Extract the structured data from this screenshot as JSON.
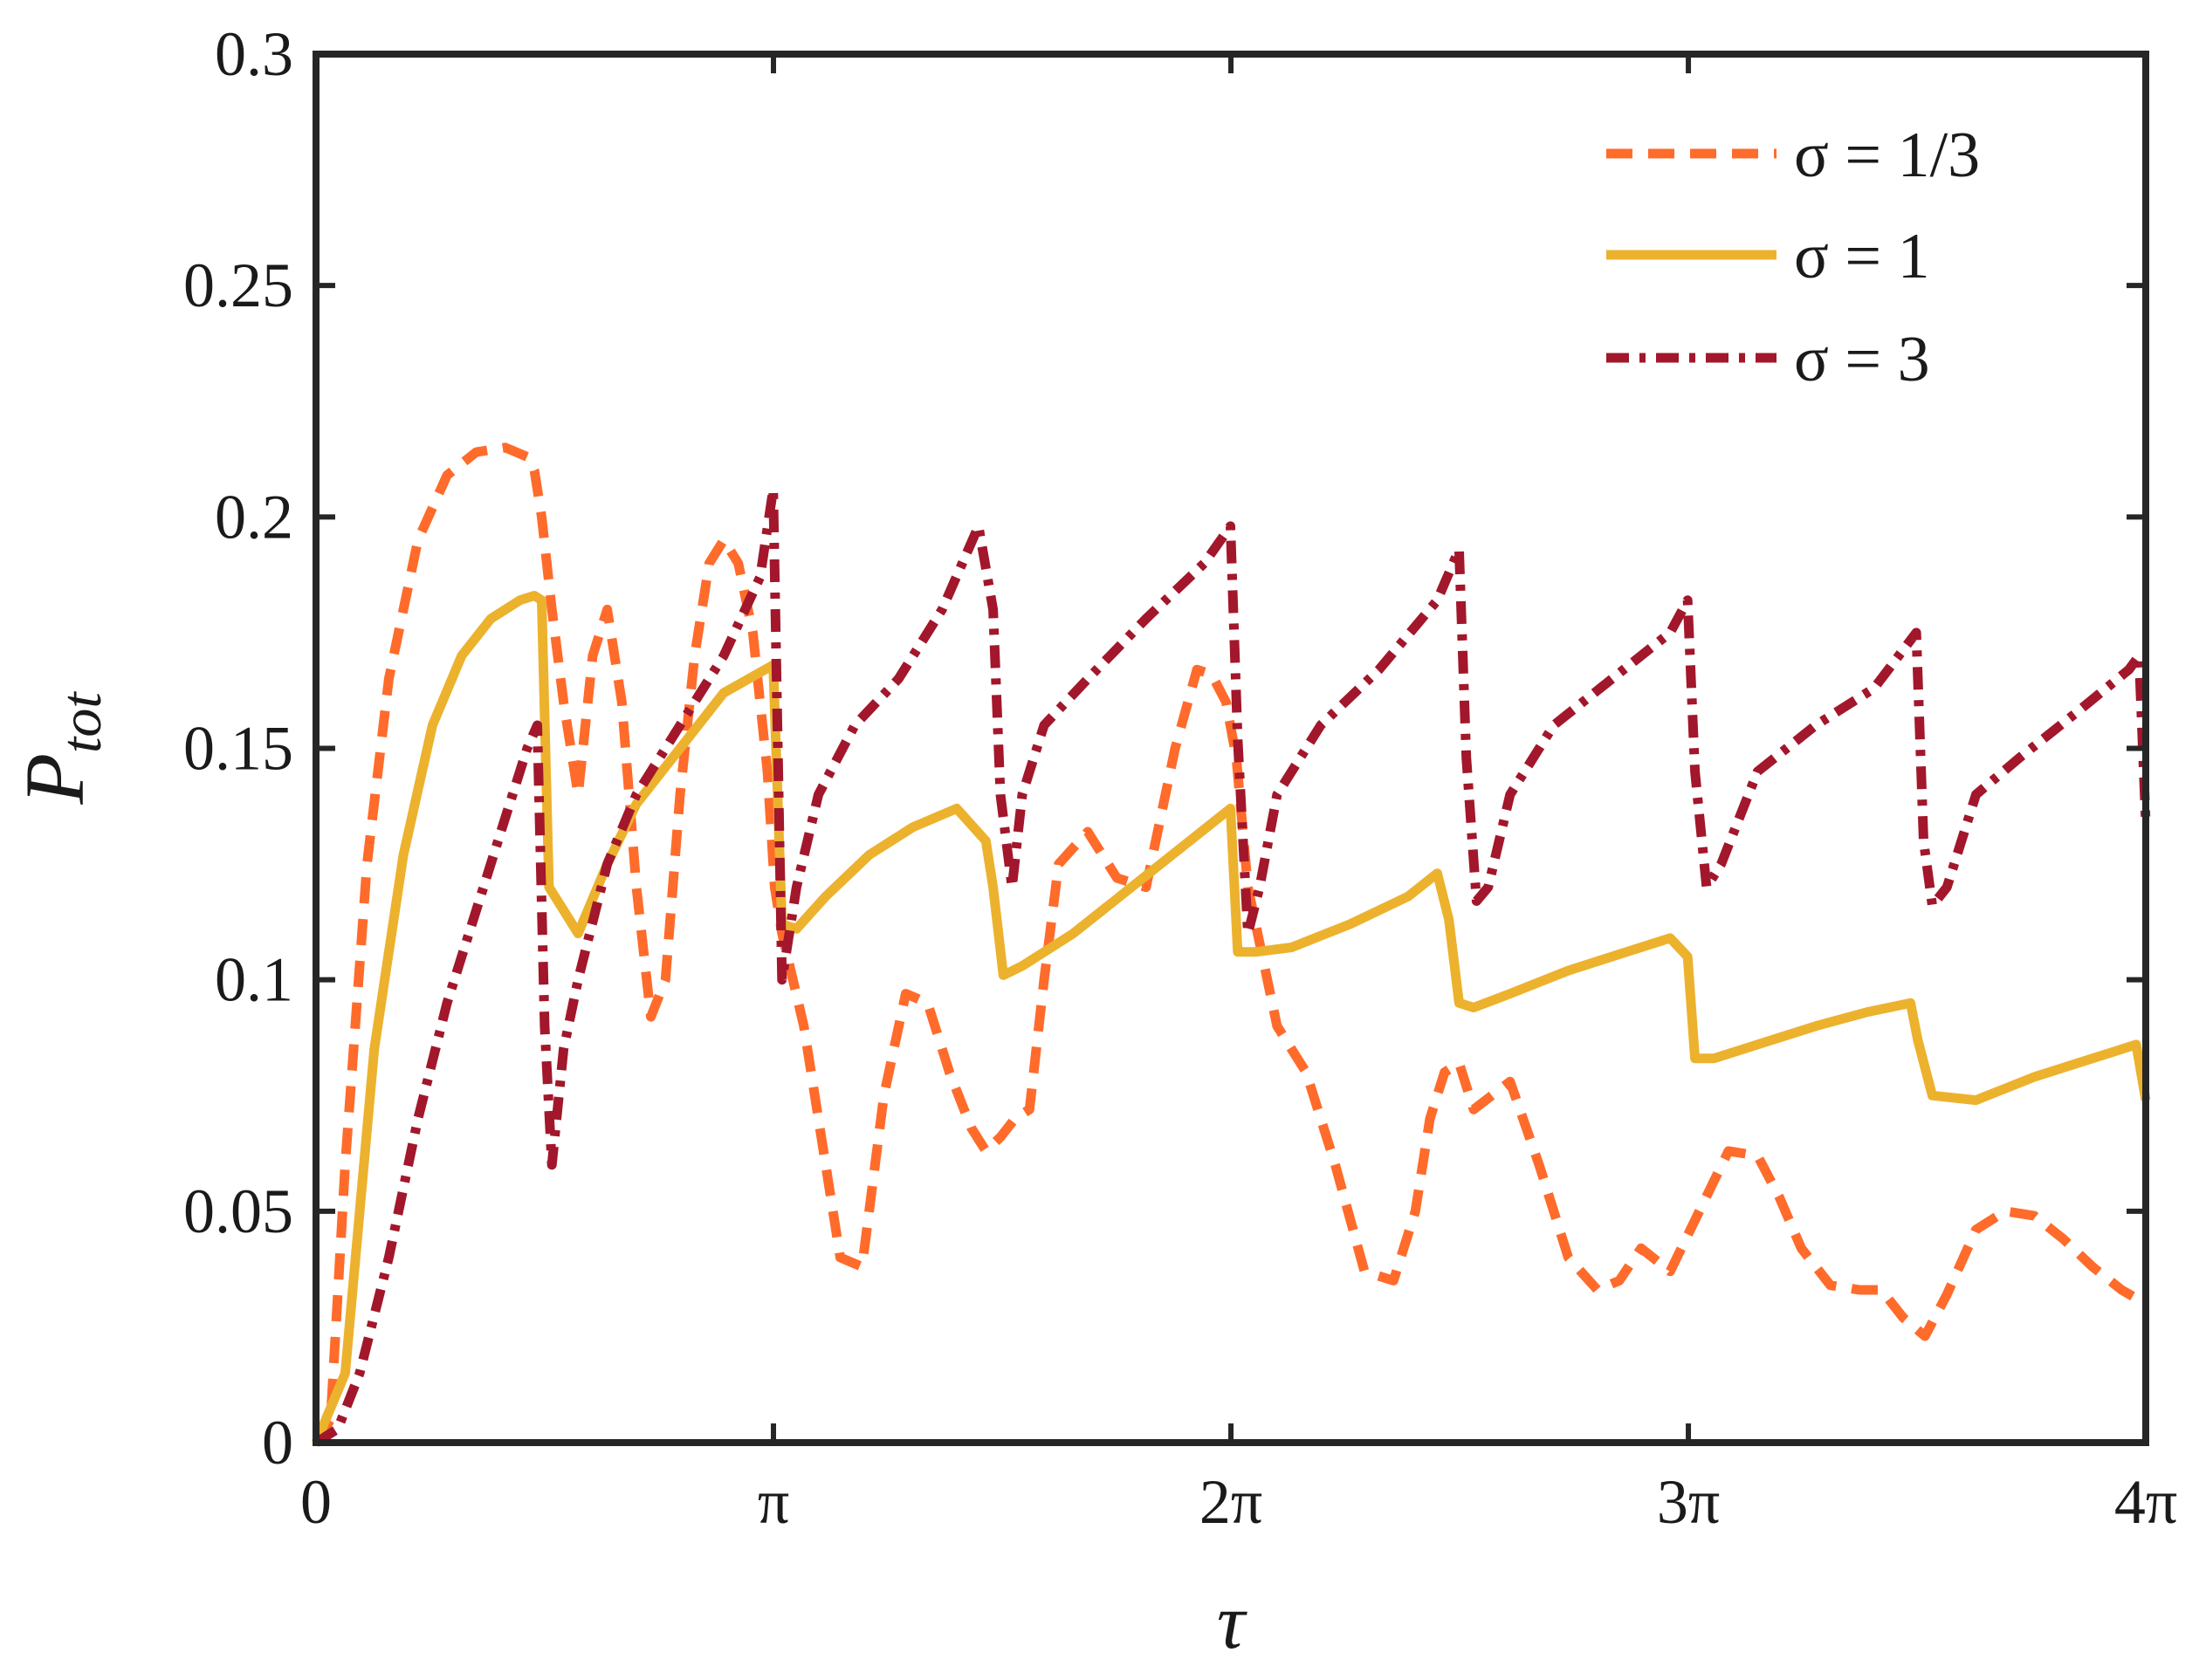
{
  "chart_data": {
    "type": "line",
    "title": "",
    "xlabel": "τ",
    "ylabel": "P",
    "ylabel_subscript": "tot",
    "xlim": [
      0,
      12.566
    ],
    "ylim": [
      0,
      0.3
    ],
    "x_ticks": [
      {
        "value": 0,
        "label": "0"
      },
      {
        "value": 3.1416,
        "label": "π"
      },
      {
        "value": 6.2832,
        "label": "2π"
      },
      {
        "value": 9.4248,
        "label": "3π"
      },
      {
        "value": 12.566,
        "label": "4π"
      }
    ],
    "y_ticks": [
      {
        "value": 0,
        "label": "0"
      },
      {
        "value": 0.05,
        "label": "0.05"
      },
      {
        "value": 0.1,
        "label": "0.1"
      },
      {
        "value": 0.15,
        "label": "0.15"
      },
      {
        "value": 0.2,
        "label": "0.2"
      },
      {
        "value": 0.25,
        "label": "0.25"
      },
      {
        "value": 0.3,
        "label": "0.3"
      }
    ],
    "grid": false,
    "legend_position": "top-right",
    "series": [
      {
        "name": "σ = 1/3",
        "color": "#ff6b2b",
        "style": "dashed",
        "x": [
          0,
          0.1,
          0.2,
          0.35,
          0.5,
          0.7,
          0.9,
          1.1,
          1.3,
          1.45,
          1.5,
          1.55,
          1.62,
          1.7,
          1.8,
          1.9,
          2.0,
          2.1,
          2.2,
          2.3,
          2.4,
          2.5,
          2.6,
          2.7,
          2.8,
          2.9,
          3.0,
          3.05,
          3.1,
          3.15,
          3.2,
          3.35,
          3.5,
          3.6,
          3.75,
          3.9,
          4.05,
          4.2,
          4.35,
          4.5,
          4.6,
          4.7,
          4.8,
          4.9,
          5.0,
          5.1,
          5.3,
          5.5,
          5.7,
          5.9,
          6.05,
          6.15,
          6.25,
          6.32,
          6.4,
          6.5,
          6.6,
          6.8,
          7.0,
          7.2,
          7.4,
          7.55,
          7.65,
          7.75,
          7.85,
          7.95,
          8.2,
          8.4,
          8.6,
          8.8,
          8.95,
          9.1,
          9.3,
          9.5,
          9.7,
          9.9,
          10.05,
          10.2,
          10.4,
          10.6,
          10.75,
          10.9,
          11.05,
          11.2,
          11.4,
          11.6,
          11.8,
          12.0,
          12.2,
          12.4,
          12.566
        ],
        "values": [
          0,
          0.005,
          0.06,
          0.125,
          0.165,
          0.195,
          0.209,
          0.214,
          0.215,
          0.213,
          0.21,
          0.2,
          0.18,
          0.16,
          0.14,
          0.17,
          0.18,
          0.16,
          0.12,
          0.092,
          0.1,
          0.14,
          0.17,
          0.19,
          0.195,
          0.19,
          0.175,
          0.16,
          0.145,
          0.12,
          0.11,
          0.09,
          0.06,
          0.04,
          0.038,
          0.075,
          0.097,
          0.095,
          0.08,
          0.068,
          0.063,
          0.066,
          0.07,
          0.072,
          0.1,
          0.125,
          0.132,
          0.122,
          0.12,
          0.15,
          0.167,
          0.166,
          0.16,
          0.148,
          0.12,
          0.105,
          0.09,
          0.08,
          0.06,
          0.037,
          0.035,
          0.05,
          0.07,
          0.08,
          0.082,
          0.072,
          0.078,
          0.06,
          0.04,
          0.033,
          0.035,
          0.042,
          0.037,
          0.05,
          0.063,
          0.062,
          0.053,
          0.042,
          0.034,
          0.033,
          0.033,
          0.027,
          0.023,
          0.032,
          0.046,
          0.05,
          0.049,
          0.044,
          0.038,
          0.033,
          0.03
        ]
      },
      {
        "name": "σ = 1",
        "color": "#ecb22e",
        "style": "solid",
        "x": [
          0,
          0.2,
          0.4,
          0.6,
          0.8,
          1.0,
          1.2,
          1.4,
          1.5,
          1.55,
          1.6,
          1.7,
          1.8,
          2.0,
          2.2,
          2.5,
          2.8,
          3.14,
          3.2,
          3.3,
          3.5,
          3.8,
          4.1,
          4.4,
          4.6,
          4.65,
          4.72,
          4.85,
          5.2,
          5.6,
          6.0,
          6.28,
          6.33,
          6.45,
          6.7,
          7.1,
          7.5,
          7.7,
          7.78,
          7.85,
          7.95,
          8.2,
          8.6,
          9.0,
          9.3,
          9.42,
          9.47,
          9.6,
          9.9,
          10.3,
          10.65,
          10.95,
          11.0,
          11.1,
          11.4,
          11.8,
          12.2,
          12.5,
          12.566
        ],
        "values": [
          0,
          0.015,
          0.085,
          0.127,
          0.155,
          0.17,
          0.178,
          0.182,
          0.183,
          0.182,
          0.12,
          0.115,
          0.11,
          0.125,
          0.138,
          0.15,
          0.162,
          0.168,
          0.112,
          0.111,
          0.118,
          0.127,
          0.133,
          0.137,
          0.13,
          0.12,
          0.101,
          0.103,
          0.11,
          0.12,
          0.13,
          0.137,
          0.106,
          0.106,
          0.107,
          0.112,
          0.118,
          0.123,
          0.113,
          0.095,
          0.094,
          0.097,
          0.102,
          0.106,
          0.109,
          0.105,
          0.083,
          0.083,
          0.086,
          0.09,
          0.093,
          0.095,
          0.087,
          0.075,
          0.074,
          0.079,
          0.083,
          0.086,
          0.074
        ]
      },
      {
        "name": "σ = 3",
        "color": "#a2172b",
        "style": "dashdot",
        "x": [
          0,
          0.15,
          0.3,
          0.5,
          0.7,
          0.9,
          1.1,
          1.3,
          1.45,
          1.52,
          1.57,
          1.62,
          1.7,
          1.8,
          2.0,
          2.2,
          2.5,
          2.8,
          3.05,
          3.14,
          3.2,
          3.3,
          3.45,
          3.7,
          4.0,
          4.3,
          4.55,
          4.65,
          4.7,
          4.78,
          4.85,
          5.0,
          5.3,
          5.7,
          6.1,
          6.28,
          6.33,
          6.4,
          6.48,
          6.6,
          6.9,
          7.3,
          7.7,
          7.85,
          7.9,
          7.97,
          8.05,
          8.2,
          8.5,
          8.9,
          9.3,
          9.42,
          9.47,
          9.55,
          9.65,
          9.9,
          10.3,
          10.7,
          10.99,
          11.04,
          11.1,
          11.2,
          11.4,
          11.7,
          12.1,
          12.45,
          12.52,
          12.566
        ],
        "values": [
          0,
          0.003,
          0.015,
          0.04,
          0.07,
          0.095,
          0.115,
          0.135,
          0.15,
          0.155,
          0.09,
          0.06,
          0.085,
          0.1,
          0.125,
          0.14,
          0.155,
          0.17,
          0.187,
          0.206,
          0.1,
          0.12,
          0.14,
          0.155,
          0.165,
          0.18,
          0.198,
          0.18,
          0.14,
          0.12,
          0.14,
          0.155,
          0.165,
          0.178,
          0.19,
          0.198,
          0.152,
          0.11,
          0.12,
          0.14,
          0.155,
          0.167,
          0.182,
          0.193,
          0.148,
          0.117,
          0.12,
          0.14,
          0.155,
          0.165,
          0.175,
          0.182,
          0.145,
          0.12,
          0.125,
          0.145,
          0.155,
          0.163,
          0.175,
          0.13,
          0.116,
          0.12,
          0.14,
          0.148,
          0.158,
          0.167,
          0.17,
          0.134
        ]
      }
    ]
  }
}
